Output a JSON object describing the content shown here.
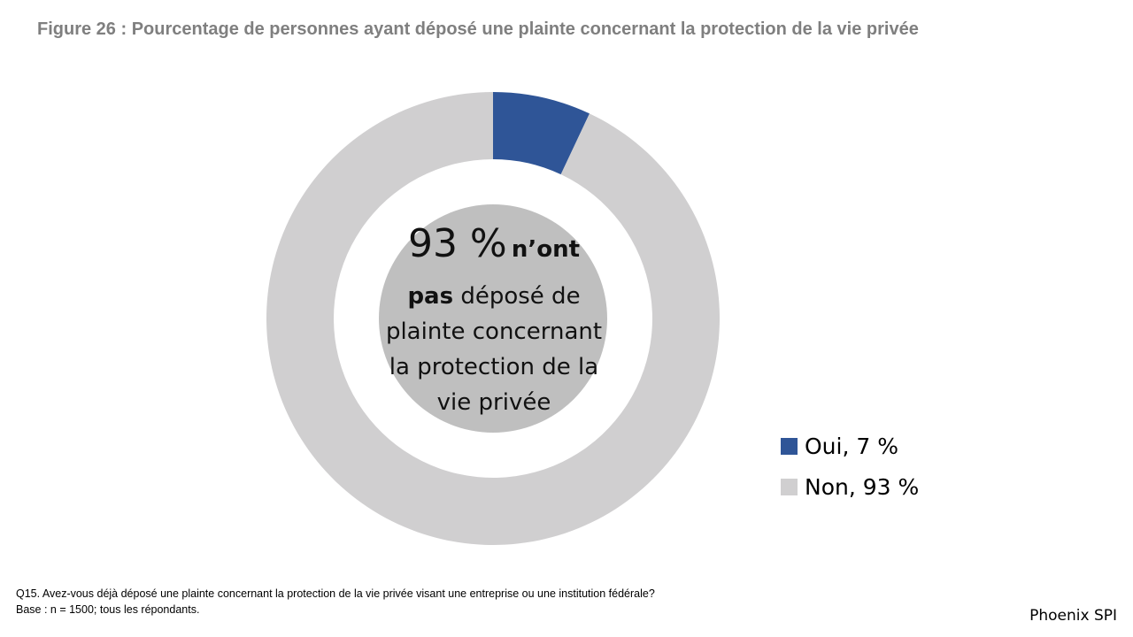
{
  "title": "Figure 26 : Pourcentage de personnes ayant déposé une plainte concernant la protection de la vie privée",
  "chart_data": {
    "type": "pie",
    "variant": "donut",
    "title": "Figure 26 : Pourcentage de personnes ayant déposé une plainte concernant la protection de la vie privée",
    "categories": [
      "Oui",
      "Non"
    ],
    "values": [
      7,
      93
    ],
    "unit": "%",
    "colors": [
      "#2f5597",
      "#d0cfd0"
    ],
    "legend": {
      "placement": "right",
      "entries": [
        "Oui, 7 %",
        "Non, 93 %"
      ]
    },
    "center_annotation": {
      "value": "93 %",
      "bold_text": "n’ont",
      "line2_bold": "pas",
      "line2_rest": " déposé de",
      "line3": "plainte concernant",
      "line4": "la protection de la",
      "line5": "vie privée",
      "fill_color": "#bfbfbf"
    }
  },
  "footnote": {
    "question": "Q15. Avez-vous déjà déposé une plainte concernant la protection de la vie privée visant une entreprise ou une institution fédérale?",
    "base": "Base : n = 1500; tous les répondants."
  },
  "source": "Phoenix SPI"
}
